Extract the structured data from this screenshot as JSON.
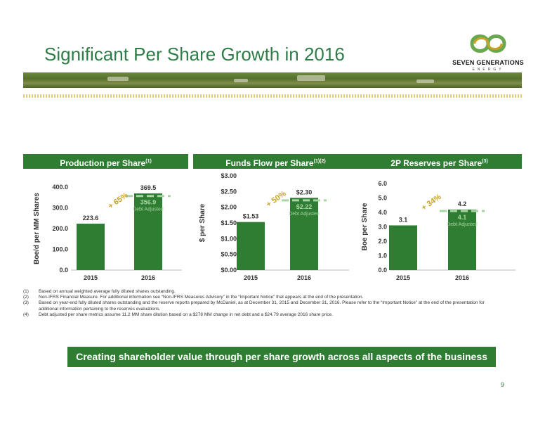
{
  "slide": {
    "title": "Significant Per Share Growth in 2016",
    "page_number": "9",
    "cta": "Creating shareholder value through per share growth across all aspects of the business"
  },
  "logo": {
    "name": "SEVEN GENERATIONS",
    "sub": "ENERGY",
    "colors": [
      "#6aa84f",
      "#c9a227"
    ]
  },
  "colors": {
    "accent": "#2e7d32",
    "bar": "#2e7d32",
    "debt_dash": "#a8d5a2",
    "growth_label": "#c9a227"
  },
  "panels": [
    {
      "header": "Production per Share",
      "sup": "(1)"
    },
    {
      "header": "Funds Flow per Share",
      "sup": "(1)(2)"
    },
    {
      "header": "2P Reserves per Share",
      "sup": "(3)"
    }
  ],
  "chart_data": [
    {
      "type": "bar",
      "title": "Production per Share",
      "categories": [
        "2015",
        "2016"
      ],
      "values": [
        223.6,
        369.5
      ],
      "value_labels": [
        "223.6",
        "369.5"
      ],
      "debt_adjusted": {
        "category": "2016",
        "value": 356.9,
        "label": "356.9",
        "note": "Debt Adjusted"
      },
      "growth_label": "+ 65%",
      "ylabel": "Boe/d per MM Shares",
      "ylim": [
        0,
        400
      ],
      "yticks": [
        "0.0",
        "100.0",
        "200.0",
        "300.0",
        "400.0"
      ]
    },
    {
      "type": "bar",
      "title": "Funds Flow per Share",
      "categories": [
        "2015",
        "2016"
      ],
      "values": [
        1.53,
        2.3
      ],
      "value_labels": [
        "$1.53",
        "$2.30"
      ],
      "debt_adjusted": {
        "category": "2016",
        "value": 2.22,
        "label": "$2.22",
        "note": "Debt Adjusted"
      },
      "growth_label": "+ 50%",
      "ylabel": "$ per Share",
      "ylim": [
        0,
        3
      ],
      "yticks": [
        "$0.00",
        "$0.50",
        "$1.00",
        "$1.50",
        "$2.00",
        "$2.50",
        "$3.00"
      ]
    },
    {
      "type": "bar",
      "title": "2P Reserves per Share",
      "categories": [
        "2015",
        "2016"
      ],
      "values": [
        3.1,
        4.2
      ],
      "value_labels": [
        "3.1",
        "4.2"
      ],
      "debt_adjusted": {
        "category": "2016",
        "value": 4.1,
        "label": "4.1",
        "note": "Debt Adjusted"
      },
      "growth_label": "+ 34%",
      "ylabel": "Boe per Share",
      "ylim": [
        0,
        6
      ],
      "yticks": [
        "0.0",
        "1.0",
        "2.0",
        "3.0",
        "4.0",
        "5.0",
        "6.0"
      ]
    }
  ],
  "footnotes": [
    {
      "n": "(1)",
      "text": "Based on annual weighted average fully diluted shares outstanding."
    },
    {
      "n": "(2)",
      "text": "Non-IFRS Financial Measure. For additional information see “Non-IFRS Measures Advisory” in the “Important Notice” that appears at the end of the presentation."
    },
    {
      "n": "(3)",
      "text": "Based on year-end fully diluted shares outstanding and the reserve reports prepared by McDaniel, as at December 31, 2015 and December 31, 2016. Please refer to the “Important Notice” at the end of the presentation for additional information pertaining to the reserves evaluations."
    },
    {
      "n": "(4)",
      "text": "Debt adjusted per share metrics assume 11.2 MM share dilution based on a $278 MM change in net debt and a $24.79 average 2016 share price."
    }
  ]
}
